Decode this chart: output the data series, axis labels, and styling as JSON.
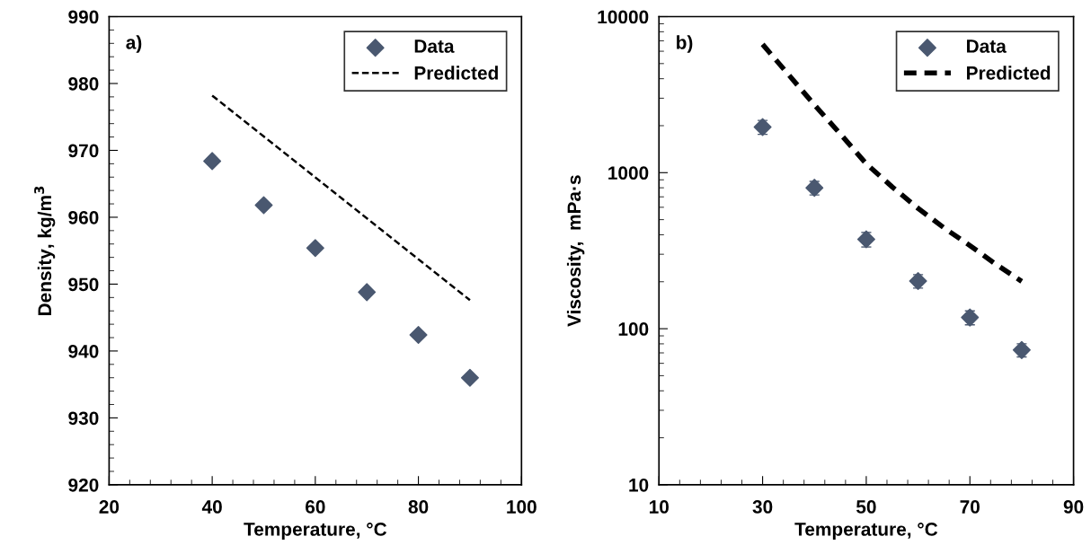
{
  "chart_data": [
    {
      "type": "scatter",
      "xlabel": "Temperature, °C",
      "ylabel": "Density, kg/m$^{3}$",
      "annotations": [
        "a)"
      ],
      "xlim": [
        20,
        100
      ],
      "xticks": [
        20,
        40,
        60,
        80,
        100
      ],
      "ylim": [
        920,
        990
      ],
      "yticks": [
        920,
        930,
        940,
        950,
        960,
        970,
        980,
        990
      ],
      "legend": "top right",
      "grid": false,
      "series": [
        {
          "name": "Data",
          "marker": "diamond",
          "color": "#4a5870",
          "x": [
            40,
            50,
            60,
            70,
            80,
            90
          ],
          "values": [
            968.4,
            961.8,
            955.4,
            948.8,
            942.4,
            936.0
          ]
        },
        {
          "name": "Predicted",
          "type": "line",
          "line_style": "dashed",
          "marker": "none",
          "color": "#000000",
          "x": [
            40,
            90
          ],
          "values": [
            978.2,
            947.6
          ]
        }
      ]
    },
    {
      "type": "scatter",
      "xlabel": "Temperature, °C",
      "ylabel": "Viscosity,  mPa·s",
      "annotations": [
        "b)"
      ],
      "log": "y",
      "xlim": [
        10,
        90
      ],
      "xticks": [
        10,
        30,
        50,
        70,
        90
      ],
      "ylim": [
        10,
        10000
      ],
      "yticks": [
        10,
        100,
        1000,
        10000
      ],
      "legend": "top right",
      "grid": false,
      "series": [
        {
          "name": "Data",
          "marker": "diamond",
          "color": "#4a5870",
          "x": [
            30,
            40,
            50,
            60,
            70,
            80
          ],
          "values": [
            1960,
            800,
            374,
            202,
            118,
            73
          ],
          "errors": [
            200,
            80,
            40,
            20,
            12,
            7
          ]
        },
        {
          "name": "Predicted",
          "type": "line",
          "line_style": "dashed",
          "marker": "none",
          "color": "#000000",
          "x": [
            30,
            35,
            40,
            45,
            50,
            55,
            60,
            65,
            70,
            75,
            80
          ],
          "values": [
            6640,
            4250,
            2720,
            1770,
            1140,
            811,
            591,
            443,
            341,
            259,
            201
          ]
        }
      ]
    }
  ]
}
